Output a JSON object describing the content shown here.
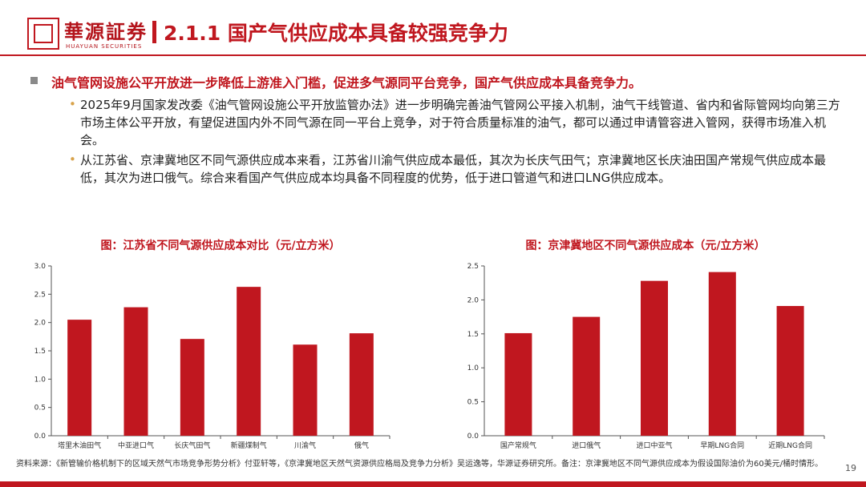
{
  "brand": {
    "name_cn": "華源証券",
    "name_en": "HUAYUAN SECURITIES",
    "color": "#c0171f"
  },
  "header": {
    "title": "2.1.1 国产气供应成本具备较强竞争力"
  },
  "content": {
    "lead": "油气管网设施公平开放进一步降低上游准入门槛，促进多气源同平台竞争，国产气供应成本具备竞争力。",
    "bullets": [
      "2025年9月国家发改委《油气管网设施公平开放监管办法》进一步明确完善油气管网公平接入机制，油气干线管道、省内和省际管网均向第三方市场主体公平开放，有望促进国内外不同气源在同一平台上竞争，对于符合质量标准的油气，都可以通过申请管容进入管网，获得市场准入机会。",
      "从江苏省、京津冀地区不同气源供应成本来看，江苏省川渝气供应成本最低，其次为长庆气田气；京津冀地区长庆油田国产常规气供应成本最低，其次为进口俄气。综合来看国产气供应成本均具备不同程度的优势，低于进口管道气和进口LNG供应成本。"
    ]
  },
  "chart_data": [
    {
      "type": "bar",
      "title": "图：江苏省不同气源供应成本对比（元/立方米）",
      "categories": [
        "塔里木油田气",
        "中亚进口气",
        "长庆气田气",
        "新疆煤制气",
        "川渝气",
        "俄气"
      ],
      "values": [
        2.05,
        2.27,
        1.71,
        2.63,
        1.61,
        1.81
      ],
      "ylim": [
        0,
        3.0
      ],
      "yticks": [
        "0.0",
        "0.5",
        "1.0",
        "1.5",
        "2.0",
        "2.5",
        "3.0"
      ],
      "bar_color": "#c0171f",
      "grid": false
    },
    {
      "type": "bar",
      "title": "图：京津冀地区不同气源供应成本（元/立方米）",
      "categories": [
        "国产常规气",
        "进口俄气",
        "进口中亚气",
        "早期LNG合同",
        "近期LNG合同"
      ],
      "values": [
        1.51,
        1.75,
        2.28,
        2.41,
        1.91
      ],
      "ylim": [
        0,
        2.5
      ],
      "yticks": [
        "0.0",
        "0.5",
        "1.0",
        "1.5",
        "2.0",
        "2.5"
      ],
      "bar_color": "#c0171f",
      "grid": false
    }
  ],
  "footer": {
    "source": "资料来源：《新管输价格机制下的区域天然气市场竞争形势分析》付亚轩等，《京津冀地区天然气资源供应格局及竞争力分析》吴运逸等，华源证券研究所。备注：京津冀地区不同气源供应成本为假设国际油价为60美元/桶时情形。",
    "page": "19"
  }
}
